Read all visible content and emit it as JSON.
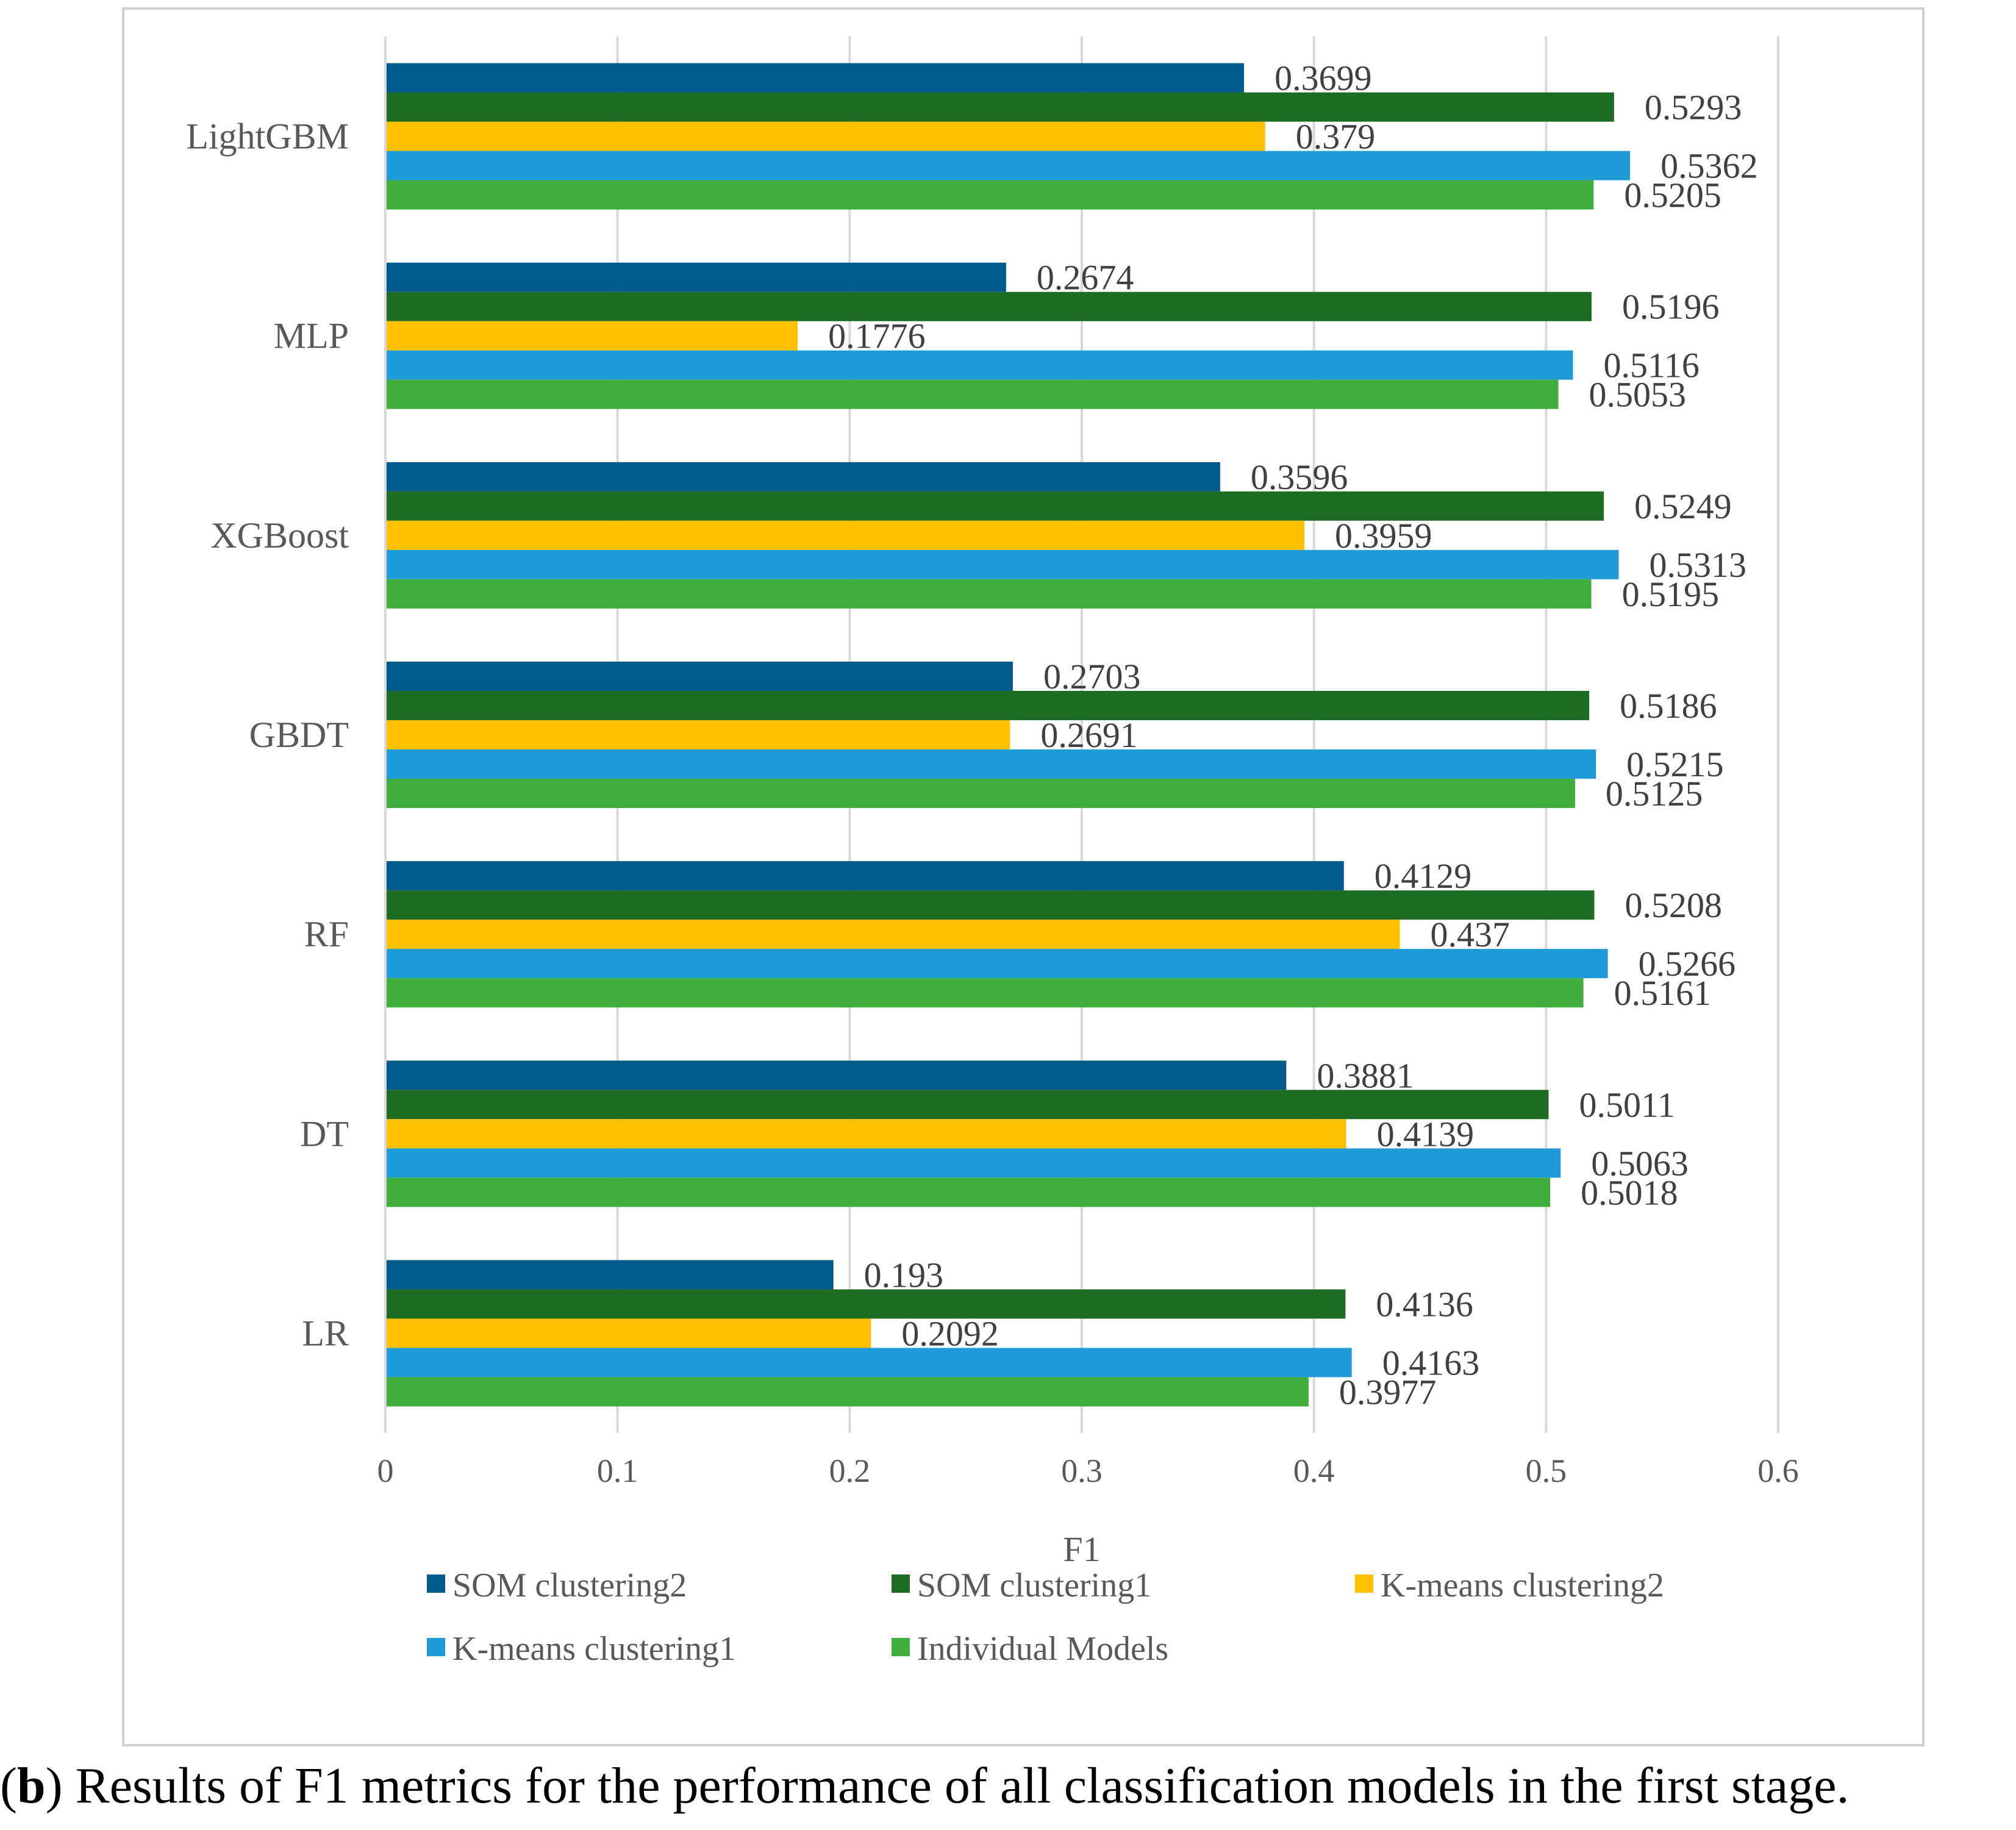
{
  "chart_data": {
    "type": "bar",
    "orientation": "horizontal",
    "xlabel": "F1",
    "ylabel": "",
    "xlim": [
      0,
      0.6
    ],
    "x_ticks": [
      "0",
      "0.1",
      "0.2",
      "0.3",
      "0.4",
      "0.5",
      "0.6"
    ],
    "grid": "vertical gridlines",
    "legend_position": "bottom",
    "categories": [
      "LightGBM",
      "MLP",
      "XGBoost",
      "GBDT",
      "RF",
      "DT",
      "LR"
    ],
    "series": [
      {
        "name": "SOM clustering2",
        "color": "#005A8C",
        "values": [
          0.3699,
          0.2674,
          0.3596,
          0.2703,
          0.4129,
          0.3881,
          0.193
        ],
        "labels": [
          "0.3699",
          "0.2674",
          "0.3596",
          "0.2703",
          "0.4129",
          "0.3881",
          "0.193"
        ]
      },
      {
        "name": "SOM clustering1",
        "color": "#1E6B23",
        "values": [
          0.5293,
          0.5196,
          0.5249,
          0.5186,
          0.5208,
          0.5011,
          0.4136
        ],
        "labels": [
          "0.5293",
          "0.5196",
          "0.5249",
          "0.5186",
          "0.5208",
          "0.5011",
          "0.4136"
        ]
      },
      {
        "name": "K-means clustering2",
        "color": "#FFC000",
        "values": [
          0.379,
          0.1776,
          0.3959,
          0.2691,
          0.437,
          0.4139,
          0.2092
        ],
        "labels": [
          "0.379",
          "0.1776",
          "0.3959",
          "0.2691",
          "0.437",
          "0.4139",
          "0.2092"
        ]
      },
      {
        "name": "K-means clustering1",
        "color": "#1F9BD7",
        "values": [
          0.5362,
          0.5116,
          0.5313,
          0.5215,
          0.5266,
          0.5063,
          0.4163
        ],
        "labels": [
          "0.5362",
          "0.5116",
          "0.5313",
          "0.5215",
          "0.5266",
          "0.5063",
          "0.4163"
        ]
      },
      {
        "name": "Individual Models",
        "color": "#41AD3D",
        "values": [
          0.5205,
          0.5053,
          0.5195,
          0.5125,
          0.5161,
          0.5018,
          0.3977
        ],
        "labels": [
          "0.5205",
          "0.5053",
          "0.5195",
          "0.5125",
          "0.5161",
          "0.5018",
          "0.3977"
        ]
      }
    ]
  },
  "caption": {
    "letter": "b",
    "text": ") Results of F1 metrics for the performance of all classification models in the first stage."
  }
}
